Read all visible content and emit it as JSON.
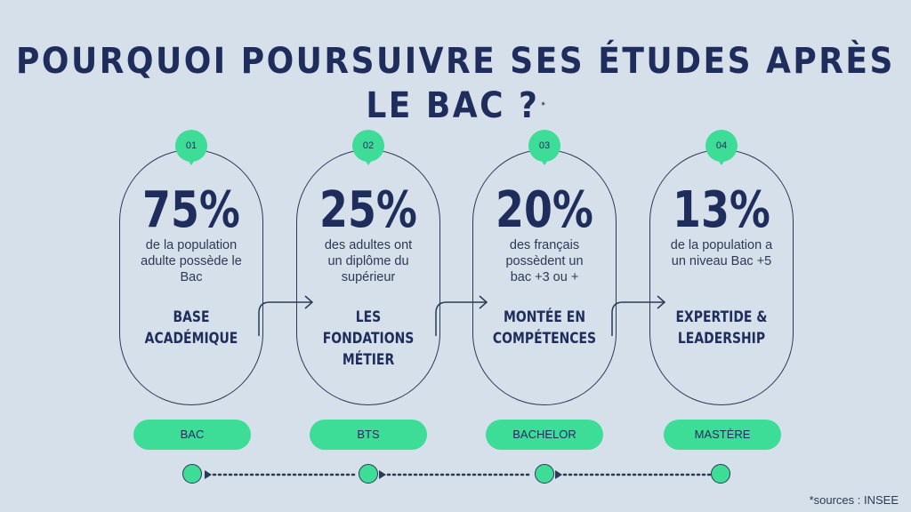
{
  "title": "POURQUOI POURSUIVRE SES ÉTUDES APRÈS LE BAC ?",
  "title_mark": "*",
  "colors": {
    "background": "#d6e0ea",
    "accent": "#3ddc97",
    "navy": "#1f2d5c"
  },
  "steps": [
    {
      "number": "01",
      "stat": "75%",
      "description": [
        "de la population",
        "adulte possède le",
        "Bac"
      ],
      "category": [
        "BASE",
        "ACADÉMIQUE"
      ],
      "level": "BAC"
    },
    {
      "number": "02",
      "stat": "25%",
      "description": [
        "des adultes ont",
        "un diplôme du",
        "supérieur"
      ],
      "category": [
        "LES FONDATIONS",
        "MÉTIER"
      ],
      "level": "BTS"
    },
    {
      "number": "03",
      "stat": "20%",
      "description": [
        "des français",
        "possèdent un",
        "bac +3 ou +"
      ],
      "category": [
        "MONTÉE EN",
        "COMPÉTENCES"
      ],
      "level": "BACHELOR"
    },
    {
      "number": "04",
      "stat": "13%",
      "description": [
        "de la population a",
        "un niveau Bac +5"
      ],
      "category": [
        "EXPERTIDE &",
        "LEADERSHIP"
      ],
      "level": "MASTÈRE"
    }
  ],
  "source": "*sources : INSEE"
}
